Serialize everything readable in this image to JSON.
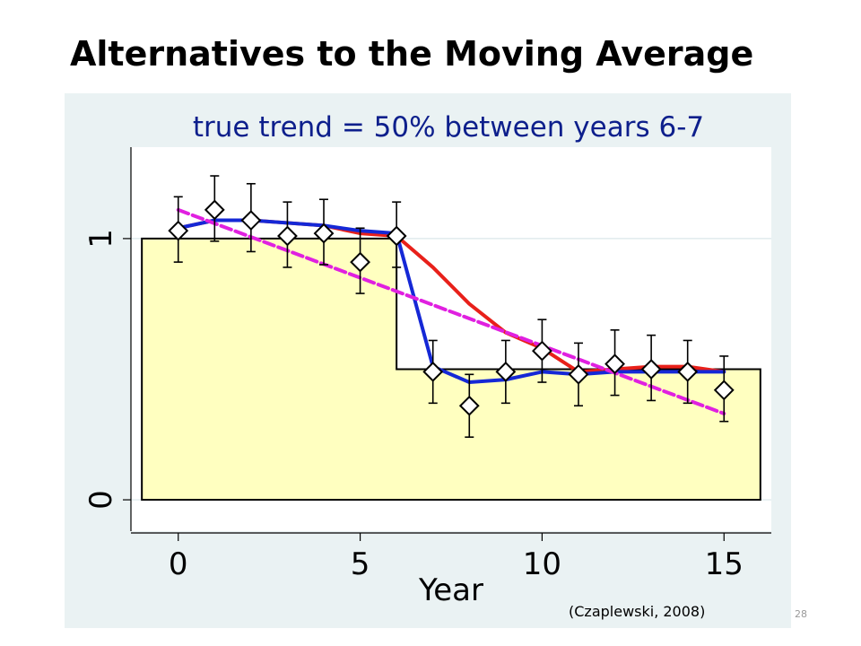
{
  "slide": {
    "title": "Alternatives to the Moving Average",
    "citation": "(Czaplewski, 2008)",
    "page_number": "28"
  },
  "colors": {
    "panel_background": "#eaf2f3",
    "plot_area": "#ffffff",
    "true_trend_fill": "#ffffc0",
    "title_text": "#0d1f8c",
    "red_series": "#e8201a",
    "blue_series": "#1528d6",
    "magenta_series": "#e020e0",
    "marker_fill": "#ffffff",
    "marker_stroke": "#000000"
  },
  "chart_data": {
    "type": "line",
    "title": "true trend = 50% between years 6-7",
    "xlabel": "Year",
    "ylabel": "",
    "xlim": [
      -1.3,
      16.3
    ],
    "ylim": [
      -0.12,
      1.35
    ],
    "x_ticks": [
      0,
      5,
      10,
      15
    ],
    "y_ticks": [
      0,
      1
    ],
    "grid": true,
    "legend": "none",
    "true_trend": {
      "x": [
        -1,
        6,
        6,
        16,
        16
      ],
      "y": [
        1,
        1,
        0.5,
        0.5,
        0
      ]
    },
    "series": [
      {
        "color": "#e8201a",
        "style": "solid",
        "x": [
          0,
          1,
          2,
          3,
          4,
          5,
          6,
          7,
          8,
          9,
          10,
          11,
          12,
          13,
          14,
          15
        ],
        "y": [
          1.04,
          1.07,
          1.07,
          1.06,
          1.05,
          1.02,
          1.01,
          0.89,
          0.75,
          0.64,
          0.58,
          0.49,
          0.5,
          0.51,
          0.51,
          0.49
        ]
      },
      {
        "color": "#1528d6",
        "style": "solid",
        "x": [
          0,
          1,
          2,
          3,
          4,
          5,
          6,
          7,
          8,
          9,
          10,
          11,
          12,
          13,
          14,
          15
        ],
        "y": [
          1.04,
          1.07,
          1.07,
          1.06,
          1.05,
          1.03,
          1.02,
          0.51,
          0.45,
          0.46,
          0.49,
          0.48,
          0.49,
          0.49,
          0.49,
          0.49
        ]
      },
      {
        "color": "#e020e0",
        "style": "dashed",
        "x": [
          0,
          15
        ],
        "y": [
          1.11,
          0.33
        ]
      }
    ],
    "observations": {
      "x": [
        0,
        1,
        2,
        3,
        4,
        5,
        6,
        7,
        8,
        9,
        10,
        11,
        12,
        13,
        14,
        15
      ],
      "y": [
        1.03,
        1.11,
        1.07,
        1.01,
        1.02,
        0.91,
        1.01,
        0.49,
        0.36,
        0.49,
        0.57,
        0.48,
        0.52,
        0.5,
        0.49,
        0.42
      ],
      "err_low": [
        0.91,
        0.99,
        0.95,
        0.89,
        0.9,
        0.79,
        0.89,
        0.37,
        0.24,
        0.37,
        0.45,
        0.36,
        0.4,
        0.38,
        0.37,
        0.3
      ],
      "err_high": [
        1.16,
        1.24,
        1.21,
        1.14,
        1.15,
        1.04,
        1.14,
        0.61,
        0.48,
        0.61,
        0.69,
        0.6,
        0.65,
        0.63,
        0.61,
        0.55
      ]
    }
  }
}
